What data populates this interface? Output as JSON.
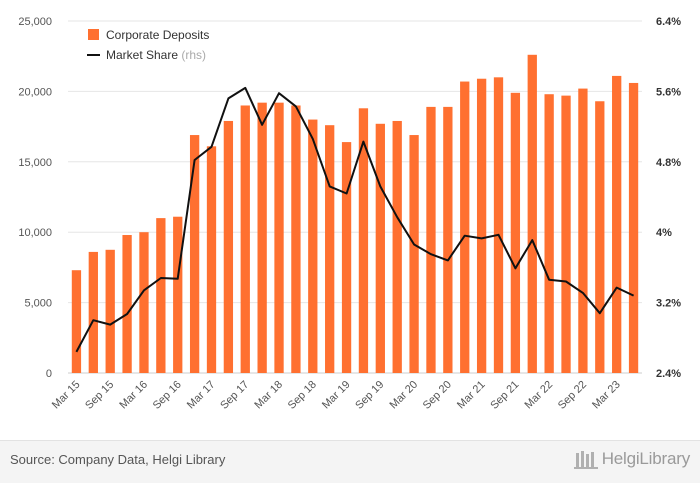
{
  "chart_data": {
    "type": "bar+line",
    "categories": [
      "Mar 15",
      "Jun 15",
      "Sep 15",
      "Dec 15",
      "Mar 16",
      "Jun 16",
      "Sep 16",
      "Dec 16",
      "Mar 17",
      "Jun 17",
      "Sep 17",
      "Dec 17",
      "Mar 18",
      "Jun 18",
      "Sep 18",
      "Dec 18",
      "Mar 19",
      "Jun 19",
      "Sep 19",
      "Dec 19",
      "Mar 20",
      "Jun 20",
      "Sep 20",
      "Dec 20",
      "Mar 21",
      "Jun 21",
      "Sep 21",
      "Dec 21",
      "Mar 22",
      "Jun 22",
      "Sep 22",
      "Dec 22",
      "Mar 23",
      "Jun 23"
    ],
    "tick_labels": [
      "Mar 15",
      "Sep 15",
      "Mar 16",
      "Sep 16",
      "Mar 17",
      "Sep 17",
      "Mar 18",
      "Sep 18",
      "Mar 19",
      "Sep 19",
      "Mar 20",
      "Sep 20",
      "Mar 21",
      "Sep 21",
      "Mar 22",
      "Sep 22",
      "Mar 23"
    ],
    "series": [
      {
        "name": "Corporate Deposits",
        "type": "bar",
        "axis": "left",
        "color": "#ff7030",
        "values": [
          7300,
          8600,
          8750,
          9800,
          10000,
          11000,
          11100,
          16900,
          16100,
          17900,
          19000,
          19200,
          19200,
          19000,
          18000,
          17600,
          16400,
          18800,
          17700,
          17900,
          16900,
          18900,
          18900,
          20700,
          20900,
          21000,
          19900,
          22600,
          19800,
          19700,
          20200,
          19300,
          21100,
          20600
        ]
      },
      {
        "name": "Market Share",
        "suffix": "(rhs)",
        "type": "line",
        "axis": "right",
        "color": "#111111",
        "values": [
          2.64,
          3.0,
          2.95,
          3.07,
          3.34,
          3.48,
          3.47,
          4.82,
          4.97,
          5.52,
          5.64,
          5.22,
          5.58,
          5.43,
          5.06,
          4.52,
          4.44,
          5.03,
          4.52,
          4.17,
          3.86,
          3.75,
          3.68,
          3.96,
          3.93,
          3.97,
          3.59,
          3.91,
          3.46,
          3.44,
          3.31,
          3.08,
          3.37,
          3.28
        ]
      }
    ],
    "y_left": {
      "ticks": [
        "0",
        "5,000",
        "10,000",
        "15,000",
        "20,000",
        "25,000"
      ],
      "ylim": [
        0,
        25000
      ]
    },
    "y_right": {
      "ticks": [
        "2.4%",
        "3.2%",
        "4%",
        "4.8%",
        "5.6%",
        "6.4%"
      ],
      "ylim": [
        2.4,
        6.4
      ]
    },
    "grid": true,
    "legend_position": "top-left"
  },
  "footer": {
    "source": "Source: Company Data, Helgi Library",
    "brand": "HelgiLibrary"
  }
}
